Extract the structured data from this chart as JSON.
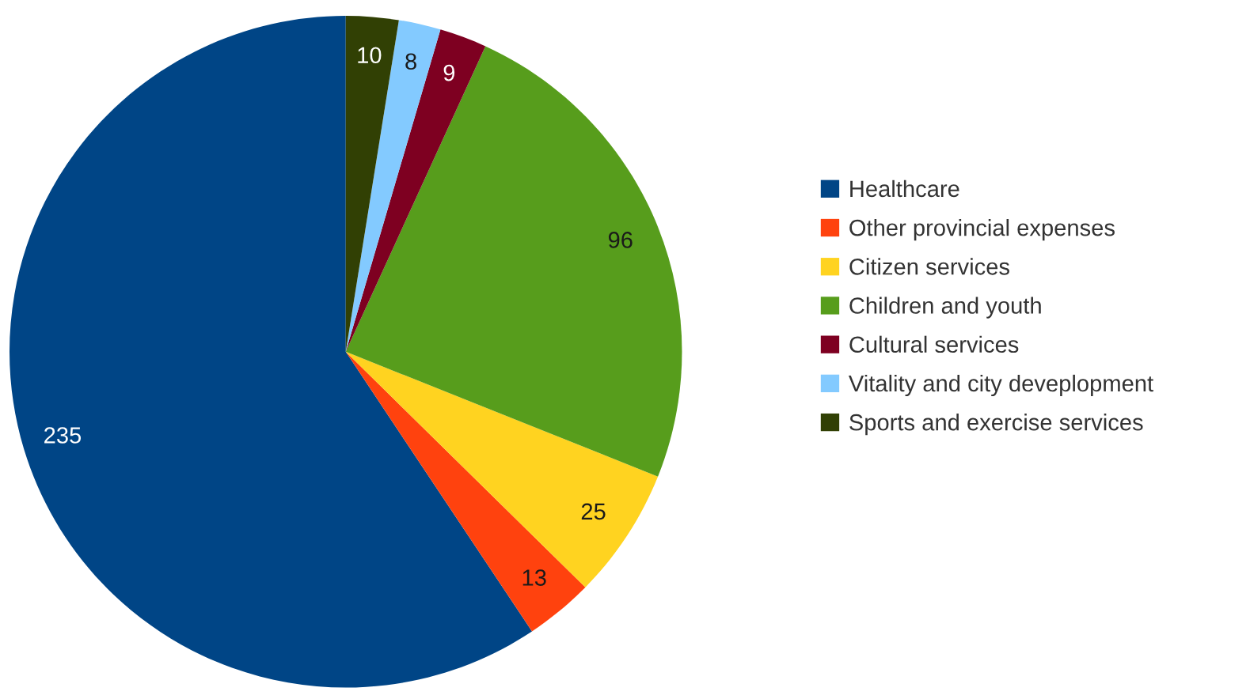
{
  "chart_data": {
    "type": "pie",
    "categories": [
      "Healthcare",
      "Other provincial expenses",
      "Citizen services",
      "Children and youth",
      "Cultural services",
      "Vitality and city deveplopment",
      "Sports and exercise services"
    ],
    "values": [
      235,
      13,
      25,
      96,
      9,
      8,
      10
    ],
    "colors": [
      "#004586",
      "#ff420e",
      "#ffd320",
      "#579d1c",
      "#7e0021",
      "#83caff",
      "#314004"
    ],
    "data_labels": true,
    "legend": "right"
  }
}
